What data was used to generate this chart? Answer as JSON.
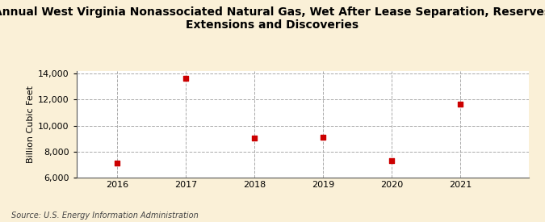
{
  "title": "Annual West Virginia Nonassociated Natural Gas, Wet After Lease Separation, Reserves\nExtensions and Discoveries",
  "ylabel": "Billion Cubic Feet",
  "source": "Source: U.S. Energy Information Administration",
  "x": [
    2016,
    2017,
    2018,
    2019,
    2020,
    2021
  ],
  "y": [
    7100,
    13620,
    9050,
    9100,
    7280,
    11650
  ],
  "ylim": [
    6000,
    14200
  ],
  "xlim": [
    2015.4,
    2022.0
  ],
  "yticks": [
    6000,
    8000,
    10000,
    12000,
    14000
  ],
  "marker_color": "#cc0000",
  "marker_size": 18,
  "bg_color": "#faf0d7",
  "plot_bg_color": "#ffffff",
  "grid_color": "#aaaaaa",
  "title_fontsize": 10,
  "label_fontsize": 8,
  "tick_fontsize": 8,
  "source_fontsize": 7
}
